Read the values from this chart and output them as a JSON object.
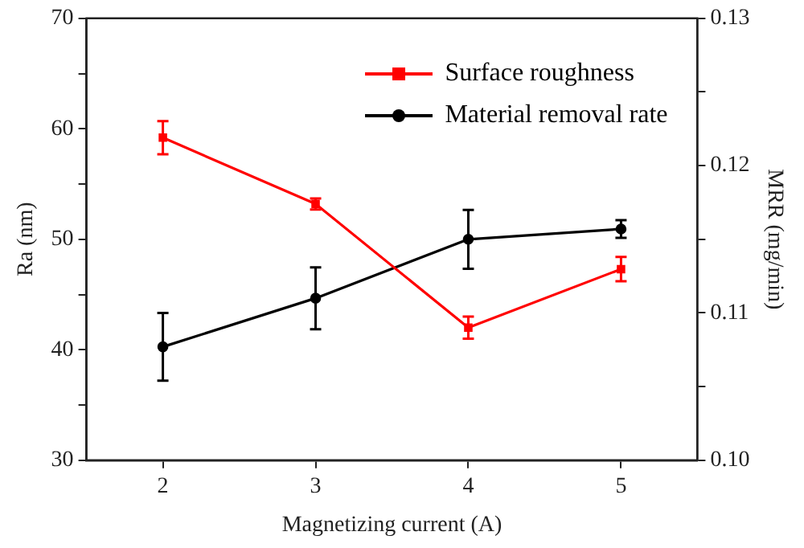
{
  "chart_data": {
    "type": "line",
    "xlabel": "Magnetizing current (A)",
    "ylabel": "Ra (nm)",
    "y2label": "MRR (mg/min)",
    "x": [
      2,
      3,
      4,
      5
    ],
    "xlim": [
      1.5,
      5.5
    ],
    "xticks": [
      2,
      3,
      4,
      5
    ],
    "ylim": [
      30,
      70
    ],
    "yticks": [
      30,
      {
        "value": 35,
        "label": null
      },
      40,
      {
        "value": 45,
        "label": null
      },
      50,
      {
        "value": 55,
        "label": null
      },
      60,
      {
        "value": 65,
        "label": null
      },
      70
    ],
    "y2lim": [
      0.1,
      0.13
    ],
    "y2ticks": [
      {
        "value": 0.1,
        "label": "0.10"
      },
      {
        "value": 0.105,
        "label": null
      },
      0.11,
      {
        "value": 0.115,
        "label": null
      },
      0.12,
      {
        "value": 0.125,
        "label": null
      },
      0.13
    ],
    "series": [
      {
        "name": "Surface roughness",
        "color": "#ff0000",
        "marker": "square",
        "values": [
          59.2,
          53.2,
          42.0,
          47.3
        ],
        "errors": [
          1.5,
          0.5,
          1.0,
          1.1
        ]
      },
      {
        "name": "Material removal rate",
        "color": "#000000",
        "marker": "circle",
        "axis": "y2",
        "values": [
          0.1077,
          0.111,
          0.115,
          0.1157
        ],
        "errors": [
          0.0023,
          0.0021,
          0.002,
          0.0006
        ]
      }
    ],
    "grid": false,
    "legend": "top right",
    "line_style": "solid"
  }
}
